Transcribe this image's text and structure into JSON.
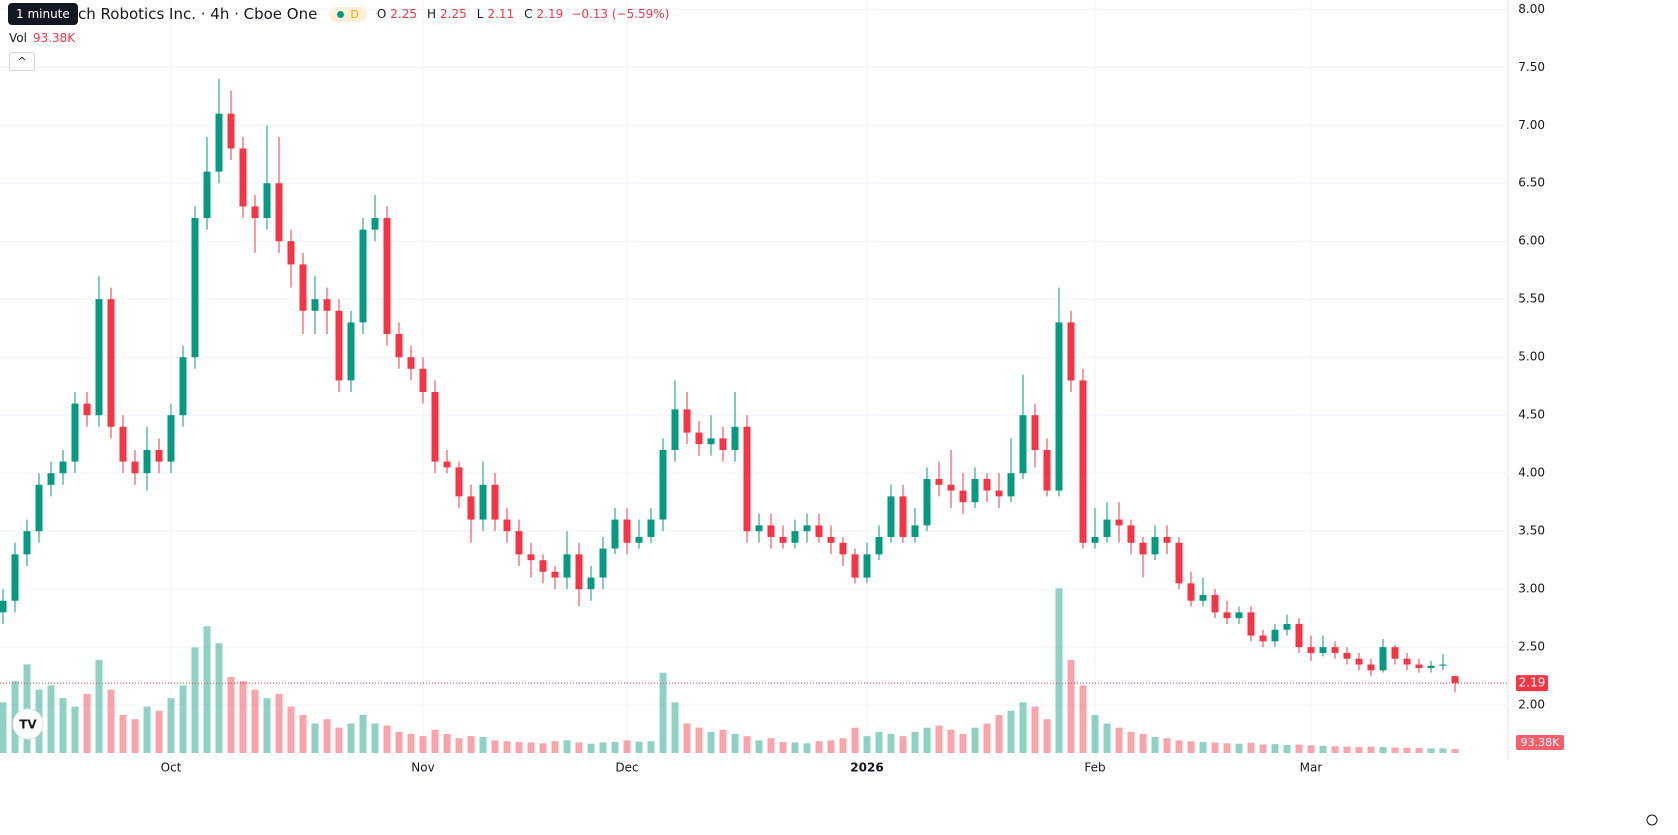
{
  "header": {
    "tooltip": "1 minute",
    "badge": "D",
    "open_key": "O",
    "high_key": "H",
    "low_key": "L",
    "close_key": "C",
    "change_label": "−0.13 (−5.59%)",
    "volume_key": "Vol"
  },
  "chart_data": {
    "type": "candlestick",
    "title": "ch Robotics Inc. · 4h · Cboe One",
    "up_color": "#089981",
    "down_color": "#f23645",
    "grid": true,
    "categories": [
      null,
      null,
      null,
      null,
      null,
      null,
      null,
      null,
      null,
      null,
      null,
      null,
      null,
      null,
      "Oct",
      null,
      null,
      null,
      null,
      null,
      null,
      null,
      null,
      null,
      null,
      null,
      null,
      null,
      null,
      null,
      null,
      null,
      null,
      null,
      null,
      "Nov",
      null,
      null,
      null,
      null,
      null,
      null,
      null,
      null,
      null,
      null,
      null,
      null,
      null,
      null,
      null,
      null,
      "Dec",
      null,
      null,
      null,
      null,
      null,
      null,
      null,
      null,
      null,
      null,
      null,
      null,
      null,
      null,
      null,
      null,
      null,
      null,
      null,
      "2026",
      null,
      null,
      null,
      null,
      null,
      null,
      null,
      null,
      null,
      null,
      null,
      null,
      null,
      null,
      null,
      null,
      null,
      null,
      "Feb",
      null,
      null,
      null,
      null,
      null,
      null,
      null,
      null,
      null,
      null,
      null,
      null,
      null,
      null,
      null,
      null,
      null,
      "Mar",
      null,
      null,
      null,
      null,
      null,
      null,
      null,
      null,
      null,
      null,
      null,
      null
    ],
    "open": [
      2.8,
      2.9,
      3.3,
      3.5,
      3.9,
      4.0,
      4.1,
      4.6,
      4.5,
      5.5,
      4.4,
      4.1,
      4.0,
      4.2,
      4.1,
      4.5,
      5.0,
      6.2,
      6.6,
      7.1,
      6.8,
      6.3,
      6.2,
      6.5,
      6.0,
      5.8,
      5.4,
      5.5,
      5.4,
      4.8,
      5.3,
      6.1,
      6.2,
      5.2,
      5.0,
      4.9,
      4.7,
      4.1,
      4.05,
      3.8,
      3.6,
      3.9,
      3.6,
      3.5,
      3.3,
      3.25,
      3.15,
      3.1,
      3.3,
      3.0,
      3.1,
      3.35,
      3.6,
      3.4,
      3.45,
      3.6,
      4.2,
      4.55,
      4.35,
      4.25,
      4.3,
      4.2,
      4.4,
      3.5,
      3.55,
      3.45,
      3.4,
      3.5,
      3.55,
      3.45,
      3.4,
      3.3,
      3.1,
      3.3,
      3.45,
      3.8,
      3.45,
      3.55,
      3.95,
      3.9,
      3.85,
      3.75,
      3.95,
      3.85,
      3.8,
      4.0,
      4.5,
      4.2,
      3.85,
      5.3,
      4.8,
      3.4,
      3.45,
      3.6,
      3.55,
      3.4,
      3.3,
      3.45,
      3.4,
      3.05,
      2.9,
      2.95,
      2.8,
      2.75,
      2.8,
      2.6,
      2.55,
      2.65,
      2.7,
      2.5,
      2.45,
      2.5,
      2.45,
      2.4,
      2.35,
      2.3,
      2.5,
      2.4,
      2.35,
      2.32,
      2.34,
      2.25
    ],
    "high": [
      3.0,
      3.4,
      3.6,
      4.0,
      4.1,
      4.2,
      4.7,
      4.7,
      5.7,
      5.6,
      4.5,
      4.2,
      4.4,
      4.3,
      4.6,
      5.1,
      6.3,
      6.9,
      7.4,
      7.3,
      6.9,
      6.4,
      7.0,
      6.9,
      6.1,
      5.9,
      5.7,
      5.6,
      5.5,
      5.4,
      6.2,
      6.4,
      6.3,
      5.3,
      5.1,
      5.0,
      4.8,
      4.2,
      4.1,
      3.9,
      4.1,
      4.0,
      3.7,
      3.6,
      3.4,
      3.3,
      3.2,
      3.5,
      3.4,
      3.2,
      3.45,
      3.7,
      3.7,
      3.6,
      3.7,
      4.3,
      4.8,
      4.7,
      4.45,
      4.5,
      4.4,
      4.7,
      4.5,
      3.65,
      3.65,
      3.55,
      3.6,
      3.65,
      3.65,
      3.55,
      3.45,
      3.35,
      3.4,
      3.55,
      3.9,
      3.9,
      3.7,
      4.05,
      4.1,
      4.2,
      4.0,
      4.05,
      4.0,
      4.0,
      4.3,
      4.85,
      4.6,
      4.3,
      5.6,
      5.4,
      4.9,
      3.7,
      3.75,
      3.75,
      3.6,
      3.45,
      3.55,
      3.55,
      3.45,
      3.15,
      3.1,
      3.0,
      2.9,
      2.85,
      2.85,
      2.65,
      2.7,
      2.78,
      2.75,
      2.6,
      2.6,
      2.55,
      2.5,
      2.45,
      2.4,
      2.57,
      2.52,
      2.45,
      2.4,
      2.38,
      2.44,
      2.25
    ],
    "low": [
      2.7,
      2.8,
      3.2,
      3.4,
      3.8,
      3.9,
      4.0,
      4.4,
      4.4,
      4.3,
      4.0,
      3.9,
      3.85,
      4.0,
      4.0,
      4.4,
      4.9,
      6.1,
      6.5,
      6.7,
      6.2,
      5.9,
      6.1,
      5.9,
      5.6,
      5.2,
      5.2,
      5.2,
      4.7,
      4.7,
      5.2,
      6.0,
      5.1,
      4.9,
      4.8,
      4.6,
      4.0,
      4.0,
      3.7,
      3.4,
      3.5,
      3.5,
      3.4,
      3.2,
      3.1,
      3.05,
      3.0,
      3.0,
      2.85,
      2.9,
      3.0,
      3.3,
      3.3,
      3.35,
      3.4,
      3.5,
      4.1,
      4.25,
      4.15,
      4.15,
      4.1,
      4.1,
      3.4,
      3.4,
      3.35,
      3.35,
      3.35,
      3.4,
      3.4,
      3.3,
      3.2,
      3.05,
      3.05,
      3.25,
      3.4,
      3.4,
      3.4,
      3.5,
      3.8,
      3.7,
      3.65,
      3.7,
      3.75,
      3.7,
      3.75,
      3.95,
      4.05,
      3.8,
      3.8,
      4.7,
      3.35,
      3.35,
      3.4,
      3.4,
      3.3,
      3.1,
      3.25,
      3.3,
      3.0,
      2.85,
      2.85,
      2.75,
      2.7,
      2.7,
      2.55,
      2.5,
      2.5,
      2.6,
      2.45,
      2.38,
      2.42,
      2.4,
      2.35,
      2.3,
      2.25,
      2.28,
      2.35,
      2.3,
      2.28,
      2.28,
      2.3,
      2.11
    ],
    "close": [
      2.9,
      3.3,
      3.5,
      3.9,
      4.0,
      4.1,
      4.6,
      4.5,
      5.5,
      4.4,
      4.1,
      4.0,
      4.2,
      4.1,
      4.5,
      5.0,
      6.2,
      6.6,
      7.1,
      6.8,
      6.3,
      6.2,
      6.5,
      6.0,
      5.8,
      5.4,
      5.5,
      5.4,
      4.8,
      5.3,
      6.1,
      6.2,
      5.2,
      5.0,
      4.9,
      4.7,
      4.1,
      4.05,
      3.8,
      3.6,
      3.9,
      3.6,
      3.5,
      3.3,
      3.25,
      3.15,
      3.1,
      3.3,
      3.0,
      3.1,
      3.35,
      3.6,
      3.4,
      3.45,
      3.6,
      4.2,
      4.55,
      4.35,
      4.25,
      4.3,
      4.2,
      4.4,
      3.5,
      3.55,
      3.45,
      3.4,
      3.5,
      3.55,
      3.45,
      3.4,
      3.3,
      3.1,
      3.3,
      3.45,
      3.8,
      3.45,
      3.55,
      3.95,
      3.9,
      3.85,
      3.75,
      3.95,
      3.85,
      3.8,
      4.0,
      4.5,
      4.2,
      3.85,
      5.3,
      4.8,
      3.4,
      3.45,
      3.6,
      3.55,
      3.4,
      3.3,
      3.45,
      3.4,
      3.05,
      2.9,
      2.95,
      2.8,
      2.75,
      2.8,
      2.6,
      2.55,
      2.65,
      2.7,
      2.5,
      2.45,
      2.5,
      2.45,
      2.4,
      2.35,
      2.3,
      2.5,
      2.4,
      2.35,
      2.32,
      2.34,
      2.35,
      2.19
    ],
    "volume": [
      1200000,
      1700000,
      2100000,
      1500000,
      1600000,
      1300000,
      1100000,
      1400000,
      2200000,
      1500000,
      900000,
      800000,
      1100000,
      1000000,
      1300000,
      1600000,
      2500000,
      3000000,
      2600000,
      1800000,
      1700000,
      1500000,
      1300000,
      1400000,
      1100000,
      900000,
      700000,
      800000,
      600000,
      700000,
      900000,
      700000,
      650000,
      500000,
      450000,
      400000,
      550000,
      450000,
      350000,
      400000,
      380000,
      300000,
      280000,
      260000,
      250000,
      230000,
      280000,
      300000,
      250000,
      220000,
      250000,
      260000,
      300000,
      270000,
      280000,
      1900000,
      1200000,
      700000,
      600000,
      500000,
      550000,
      450000,
      400000,
      300000,
      350000,
      260000,
      250000,
      230000,
      280000,
      300000,
      350000,
      600000,
      400000,
      500000,
      450000,
      400000,
      500000,
      600000,
      650000,
      550000,
      450000,
      600000,
      700000,
      900000,
      1000000,
      1200000,
      1100000,
      800000,
      3900000,
      2200000,
      1600000,
      900000,
      700000,
      600000,
      500000,
      450000,
      380000,
      350000,
      300000,
      280000,
      260000,
      250000,
      230000,
      220000,
      240000,
      200000,
      210000,
      190000,
      200000,
      180000,
      170000,
      160000,
      150000,
      140000,
      150000,
      140000,
      130000,
      125000,
      120000,
      110000,
      110000,
      93380
    ],
    "last_volume_label": "93.38K",
    "ylim": [
      1.57,
      8.08
    ],
    "yticks": [
      {
        "value": 2,
        "label": "2.00"
      },
      {
        "value": 2.5,
        "label": "2.50"
      },
      {
        "value": 3,
        "label": "3.00"
      },
      {
        "value": 3.5,
        "label": "3.50"
      },
      {
        "value": 4,
        "label": "4.00"
      },
      {
        "value": 4.5,
        "label": "4.50"
      },
      {
        "value": 5,
        "label": "5.00"
      },
      {
        "value": 5.5,
        "label": "5.50"
      },
      {
        "value": 6,
        "label": "6.00"
      },
      {
        "value": 6.5,
        "label": "6.50"
      },
      {
        "value": 7,
        "label": "7.00"
      },
      {
        "value": 7.5,
        "label": "7.50"
      },
      {
        "value": 8,
        "label": "8.00"
      }
    ],
    "vlim": [
      0,
      4500000
    ]
  }
}
